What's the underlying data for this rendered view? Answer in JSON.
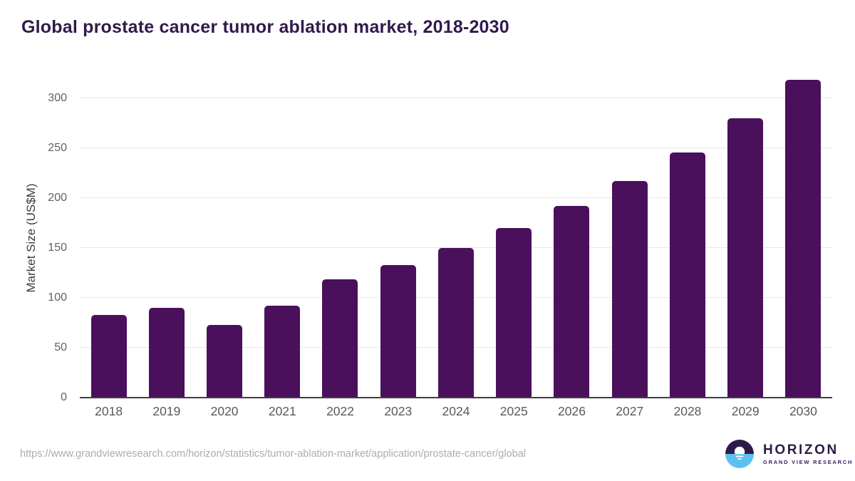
{
  "title": "Global prostate cancer tumor ablation market, 2018-2030",
  "source_url": "https://www.grandviewresearch.com/horizon/statistics/tumor-ablation-market/application/prostate-cancer/global",
  "logo": {
    "name": "HORIZON",
    "subtitle": "GRAND VIEW RESEARCH"
  },
  "colors": {
    "bar": "#4a105c",
    "title_text": "#311a4d",
    "axis_tick_text": "#58595b",
    "axis_title_text": "#3c3c3c",
    "gridline": "#e8e8ea",
    "axis_line": "#3f3f3f",
    "url_text": "#aaacae",
    "logo_purple": "#2e1a47",
    "logo_blue": "#5ec1ed"
  },
  "chart_data": {
    "type": "bar",
    "title": "Global prostate cancer tumor ablation market, 2018-2030",
    "categories": [
      "2018",
      "2019",
      "2020",
      "2021",
      "2022",
      "2023",
      "2024",
      "2025",
      "2026",
      "2027",
      "2028",
      "2029",
      "2030"
    ],
    "values": [
      83,
      90,
      73,
      92,
      119,
      133,
      150,
      170,
      192,
      217,
      246,
      280,
      319
    ],
    "xlabel": "",
    "ylabel": "Market Size (US$M)",
    "ylim": [
      0,
      330
    ],
    "yticks": [
      0,
      50,
      100,
      150,
      200,
      250,
      300
    ],
    "grid": "horizontal-only",
    "legend": "none",
    "bar_color": "#4a105c"
  }
}
